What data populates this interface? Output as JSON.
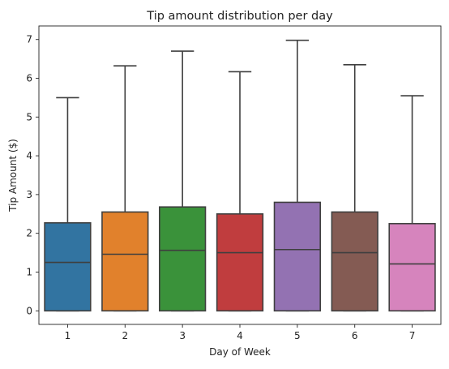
{
  "chart_data": {
    "type": "box",
    "title": "Tip amount distribution per day",
    "xlabel": "Day of Week",
    "ylabel": "Tip Amount ($)",
    "categories": [
      "1",
      "2",
      "3",
      "4",
      "5",
      "6",
      "7"
    ],
    "yticks": [
      "0",
      "1",
      "2",
      "3",
      "4",
      "5",
      "6",
      "7"
    ],
    "ylim": [
      -0.35,
      7.35
    ],
    "grid": false,
    "legend": "none",
    "series": [
      {
        "category": "1",
        "min": 0,
        "q1": 0,
        "median": 1.25,
        "q3": 2.27,
        "max": 5.5,
        "color": "#3274a1"
      },
      {
        "category": "2",
        "min": 0,
        "q1": 0,
        "median": 1.46,
        "q3": 2.55,
        "max": 6.32,
        "color": "#e1812c"
      },
      {
        "category": "3",
        "min": 0,
        "q1": 0,
        "median": 1.56,
        "q3": 2.68,
        "max": 6.7,
        "color": "#3a923a"
      },
      {
        "category": "4",
        "min": 0,
        "q1": 0,
        "median": 1.5,
        "q3": 2.5,
        "max": 6.17,
        "color": "#c03d3e"
      },
      {
        "category": "5",
        "min": 0,
        "q1": 0,
        "median": 1.58,
        "q3": 2.8,
        "max": 6.98,
        "color": "#9372b2"
      },
      {
        "category": "6",
        "min": 0,
        "q1": 0,
        "median": 1.5,
        "q3": 2.55,
        "max": 6.35,
        "color": "#845b53"
      },
      {
        "category": "7",
        "min": 0,
        "q1": 0,
        "median": 1.21,
        "q3": 2.25,
        "max": 5.55,
        "color": "#d684bd"
      }
    ]
  }
}
